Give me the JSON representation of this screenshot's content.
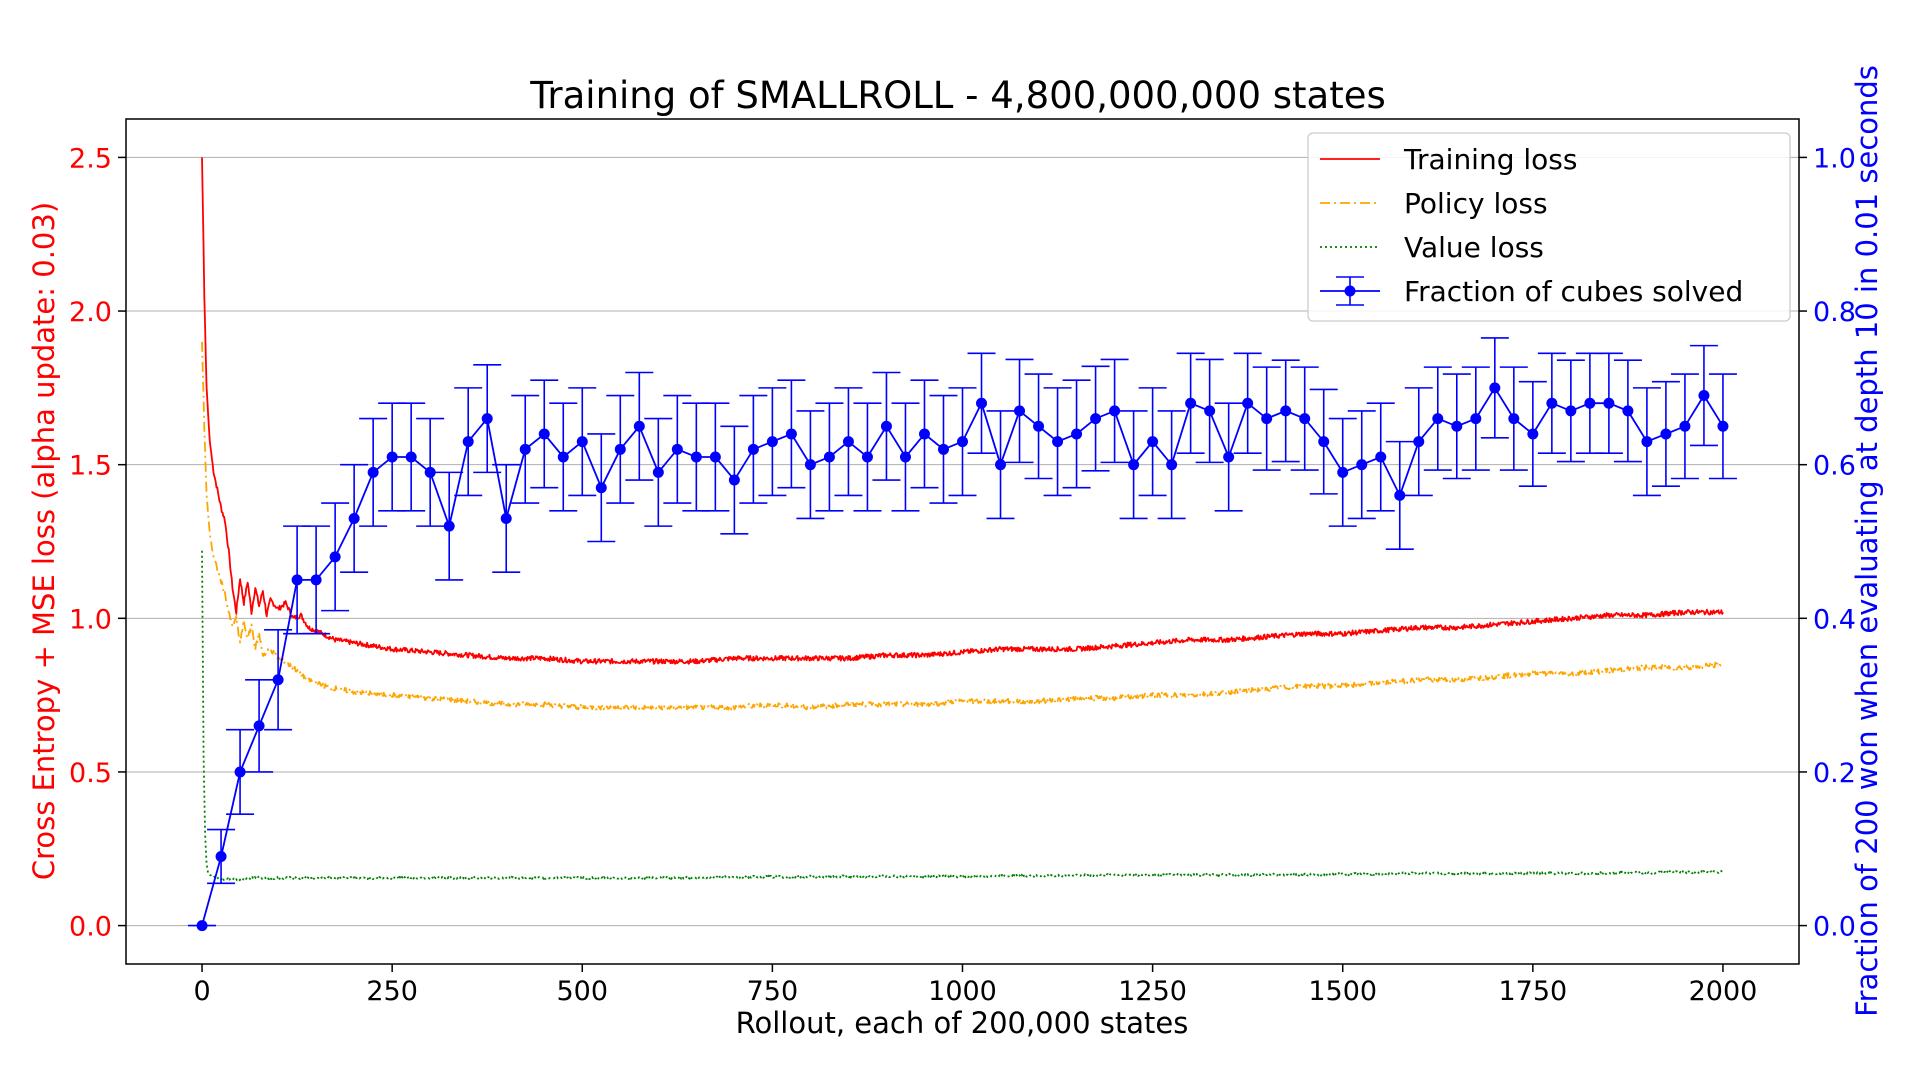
{
  "chart_data": {
    "type": "line",
    "title": "Training of SMALLROLL - 4,800,000,000 states",
    "xlabel": "Rollout, each of 200,000 states",
    "ylabel_left": "Cross Entropy + MSE loss (alpha update: 0.03)",
    "ylabel_right": "Fraction of 200 won when evaluating at depth 10 in 0.01 seconds",
    "xlim": [
      -100,
      2100
    ],
    "ylim_left": [
      -0.125,
      2.625
    ],
    "ylim_right": [
      -0.05,
      1.05
    ],
    "x_ticks": [
      0,
      250,
      500,
      750,
      1000,
      1250,
      1500,
      1750,
      2000
    ],
    "x_tick_labels": [
      "0",
      "250",
      "500",
      "750",
      "1000",
      "1250",
      "1500",
      "1750",
      "2000"
    ],
    "y_left_ticks": [
      0.0,
      0.5,
      1.0,
      1.5,
      2.0,
      2.5
    ],
    "y_left_tick_labels": [
      "0.0",
      "0.5",
      "1.0",
      "1.5",
      "2.0",
      "2.5"
    ],
    "y_right_ticks": [
      0.0,
      0.2,
      0.4,
      0.6,
      0.8,
      1.0
    ],
    "y_right_tick_labels": [
      "0.0",
      "0.2",
      "0.4",
      "0.6",
      "0.8",
      "1.0"
    ],
    "grid": "horizontal",
    "legend_position": "top-right",
    "colors": {
      "left_axis": "#ff0000",
      "right_axis": "#0000ff",
      "training": "#ff0000",
      "policy": "#ffa500",
      "value": "#008000",
      "fraction": "#0000ff"
    },
    "series": [
      {
        "name": "Training loss",
        "axis": "left",
        "style": "solid",
        "x": [
          0,
          3,
          6,
          10,
          15,
          20,
          25,
          30,
          35,
          40,
          45,
          50,
          55,
          60,
          65,
          70,
          75,
          80,
          85,
          90,
          100,
          110,
          120,
          130,
          140,
          150,
          175,
          200,
          250,
          300,
          350,
          400,
          450,
          500,
          550,
          600,
          650,
          700,
          750,
          800,
          850,
          900,
          950,
          1000,
          1050,
          1100,
          1150,
          1200,
          1250,
          1300,
          1350,
          1400,
          1450,
          1500,
          1550,
          1600,
          1650,
          1700,
          1750,
          1800,
          1850,
          1900,
          1950,
          2000
        ],
        "values": [
          2.5,
          2.05,
          1.75,
          1.58,
          1.48,
          1.42,
          1.36,
          1.32,
          1.22,
          1.1,
          1.02,
          1.13,
          1.05,
          1.12,
          1.02,
          1.1,
          1.04,
          1.09,
          1.01,
          1.06,
          1.03,
          1.05,
          1.0,
          1.01,
          0.97,
          0.96,
          0.93,
          0.92,
          0.9,
          0.89,
          0.88,
          0.87,
          0.87,
          0.86,
          0.86,
          0.86,
          0.86,
          0.87,
          0.87,
          0.87,
          0.87,
          0.88,
          0.88,
          0.89,
          0.9,
          0.9,
          0.9,
          0.91,
          0.92,
          0.93,
          0.93,
          0.94,
          0.95,
          0.95,
          0.96,
          0.97,
          0.97,
          0.98,
          0.99,
          1.0,
          1.01,
          1.01,
          1.02,
          1.02
        ]
      },
      {
        "name": "Policy loss",
        "axis": "left",
        "style": "dashdot",
        "x": [
          0,
          3,
          6,
          10,
          15,
          20,
          25,
          30,
          35,
          40,
          45,
          50,
          55,
          60,
          65,
          70,
          75,
          80,
          90,
          100,
          120,
          140,
          160,
          180,
          200,
          250,
          300,
          350,
          400,
          450,
          500,
          550,
          600,
          650,
          700,
          750,
          800,
          850,
          900,
          950,
          1000,
          1050,
          1100,
          1150,
          1200,
          1250,
          1300,
          1350,
          1400,
          1450,
          1500,
          1550,
          1600,
          1650,
          1700,
          1750,
          1800,
          1850,
          1900,
          1950,
          2000
        ],
        "values": [
          1.9,
          1.62,
          1.4,
          1.28,
          1.2,
          1.16,
          1.12,
          1.08,
          1.02,
          0.97,
          1.0,
          0.92,
          0.99,
          0.93,
          0.98,
          0.9,
          0.95,
          0.88,
          0.9,
          0.87,
          0.84,
          0.8,
          0.78,
          0.77,
          0.76,
          0.75,
          0.74,
          0.73,
          0.72,
          0.72,
          0.71,
          0.71,
          0.71,
          0.71,
          0.71,
          0.72,
          0.71,
          0.72,
          0.72,
          0.72,
          0.73,
          0.73,
          0.73,
          0.74,
          0.74,
          0.75,
          0.75,
          0.76,
          0.77,
          0.78,
          0.78,
          0.79,
          0.8,
          0.8,
          0.81,
          0.82,
          0.82,
          0.83,
          0.84,
          0.84,
          0.85
        ]
      },
      {
        "name": "Value loss",
        "axis": "left",
        "style": "dotted",
        "x": [
          0,
          2,
          4,
          6,
          8,
          10,
          15,
          20,
          30,
          40,
          50,
          60,
          100,
          200,
          400,
          600,
          800,
          1000,
          1200,
          1400,
          1600,
          1800,
          2000
        ],
        "values": [
          1.22,
          0.55,
          0.3,
          0.2,
          0.17,
          0.165,
          0.16,
          0.155,
          0.15,
          0.15,
          0.15,
          0.155,
          0.155,
          0.155,
          0.155,
          0.155,
          0.16,
          0.16,
          0.165,
          0.165,
          0.17,
          0.17,
          0.175
        ]
      },
      {
        "name": "Fraction of cubes solved",
        "axis": "right",
        "style": "errorbar",
        "x": [
          0,
          25,
          50,
          75,
          100,
          125,
          150,
          175,
          200,
          225,
          250,
          275,
          300,
          325,
          350,
          375,
          400,
          425,
          450,
          475,
          500,
          525,
          550,
          575,
          600,
          625,
          650,
          675,
          700,
          725,
          750,
          775,
          800,
          825,
          850,
          875,
          900,
          925,
          950,
          975,
          1000,
          1025,
          1050,
          1075,
          1100,
          1125,
          1150,
          1175,
          1200,
          1225,
          1250,
          1275,
          1300,
          1325,
          1350,
          1375,
          1400,
          1425,
          1450,
          1475,
          1500,
          1525,
          1550,
          1575,
          1600,
          1625,
          1650,
          1675,
          1700,
          1725,
          1750,
          1775,
          1800,
          1825,
          1850,
          1875,
          1900,
          1925,
          1950,
          1975,
          2000
        ],
        "values": [
          0.0,
          0.09,
          0.2,
          0.26,
          0.32,
          0.45,
          0.45,
          0.48,
          0.53,
          0.59,
          0.61,
          0.61,
          0.59,
          0.52,
          0.63,
          0.66,
          0.53,
          0.62,
          0.64,
          0.61,
          0.63,
          0.57,
          0.62,
          0.65,
          0.59,
          0.62,
          0.61,
          0.61,
          0.58,
          0.62,
          0.63,
          0.64,
          0.6,
          0.61,
          0.63,
          0.61,
          0.65,
          0.61,
          0.64,
          0.62,
          0.63,
          0.68,
          0.6,
          0.67,
          0.65,
          0.63,
          0.64,
          0.66,
          0.67,
          0.6,
          0.63,
          0.6,
          0.68,
          0.67,
          0.61,
          0.68,
          0.66,
          0.67,
          0.66,
          0.63,
          0.59,
          0.6,
          0.61,
          0.56,
          0.63,
          0.66,
          0.65,
          0.66,
          0.7,
          0.66,
          0.64,
          0.68,
          0.67,
          0.68,
          0.68,
          0.67,
          0.63,
          0.64,
          0.65,
          0.69,
          0.65
        ],
        "error": [
          0.0,
          0.035,
          0.055,
          0.06,
          0.065,
          0.07,
          0.07,
          0.07,
          0.07,
          0.07,
          0.07,
          0.07,
          0.07,
          0.07,
          0.07,
          0.07,
          0.07,
          0.07,
          0.07,
          0.07,
          0.07,
          0.07,
          0.07,
          0.07,
          0.07,
          0.07,
          0.07,
          0.07,
          0.07,
          0.07,
          0.07,
          0.07,
          0.07,
          0.07,
          0.07,
          0.07,
          0.07,
          0.07,
          0.07,
          0.07,
          0.07,
          0.065,
          0.07,
          0.067,
          0.068,
          0.07,
          0.07,
          0.068,
          0.067,
          0.07,
          0.07,
          0.07,
          0.065,
          0.067,
          0.07,
          0.065,
          0.067,
          0.066,
          0.067,
          0.068,
          0.07,
          0.07,
          0.07,
          0.07,
          0.07,
          0.067,
          0.068,
          0.067,
          0.065,
          0.067,
          0.068,
          0.065,
          0.066,
          0.065,
          0.065,
          0.066,
          0.07,
          0.068,
          0.068,
          0.065,
          0.068
        ]
      }
    ]
  }
}
